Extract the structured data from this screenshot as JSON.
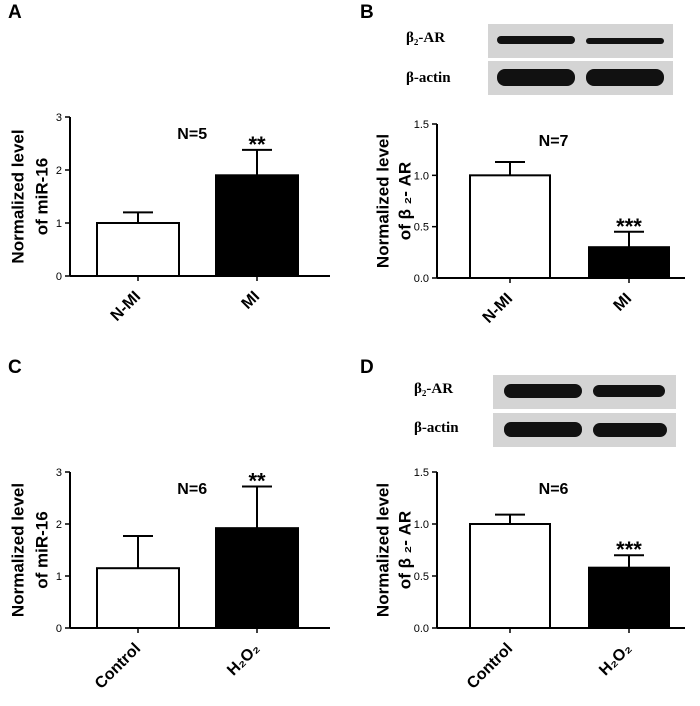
{
  "colors": {
    "axis": "#000000",
    "bar_control": "#ffffff",
    "bar_treatment": "#000000",
    "blot_band": "#111111",
    "blot_bg": "#d4d4d4"
  },
  "chart_data": [
    {
      "panel": "A",
      "type": "bar",
      "categories": [
        "N-MI",
        "MI"
      ],
      "values": [
        1.0,
        1.9
      ],
      "errors": [
        0.2,
        0.48
      ],
      "significance": [
        "",
        "**"
      ],
      "annotation": "N=5",
      "ylabel_line1": "Normalized level",
      "ylabel_line2": "of miR-16",
      "ylim": [
        0,
        3
      ],
      "yticks": [
        "0",
        "1",
        "2",
        "3"
      ]
    },
    {
      "panel": "B",
      "type": "bar",
      "categories": [
        "N-MI",
        "MI"
      ],
      "values": [
        1.0,
        0.3
      ],
      "errors": [
        0.13,
        0.15
      ],
      "significance": [
        "",
        "***"
      ],
      "annotation": "N=7",
      "ylabel_line1": "Normalized level",
      "ylabel_line2": "of β ₂- AR",
      "ylim": [
        0,
        1.5
      ],
      "yticks": [
        "0.0",
        "0.5",
        "1.0",
        "1.5"
      ]
    },
    {
      "panel": "C",
      "type": "bar",
      "categories": [
        "Control",
        "H₂O₂"
      ],
      "values": [
        1.15,
        1.92
      ],
      "errors": [
        0.62,
        0.8
      ],
      "significance": [
        "",
        "**"
      ],
      "annotation": "N=6",
      "ylabel_line1": "Normalized level",
      "ylabel_line2": "of miR-16",
      "ylim": [
        0,
        3
      ],
      "yticks": [
        "0",
        "1",
        "2",
        "3"
      ]
    },
    {
      "panel": "D",
      "type": "bar",
      "categories": [
        "Control",
        "H₂O₂"
      ],
      "values": [
        1.0,
        0.58
      ],
      "errors": [
        0.09,
        0.12
      ],
      "significance": [
        "",
        "***"
      ],
      "annotation": "N=6",
      "ylabel_line1": "Normalized level",
      "ylabel_line2": "of β ₂- AR",
      "ylim": [
        0,
        1.5
      ],
      "yticks": [
        "0.0",
        "0.5",
        "1.0",
        "1.5"
      ]
    }
  ],
  "blots": {
    "B": {
      "band1": "β₂-AR",
      "band2": "β-actin"
    },
    "D": {
      "band1": "β₂-AR",
      "band2": "β-actin"
    }
  }
}
